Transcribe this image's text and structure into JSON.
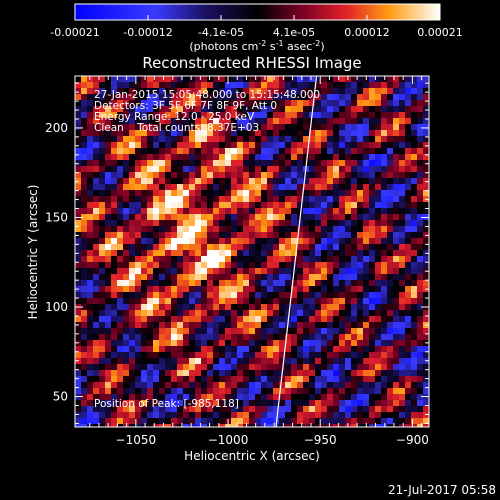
{
  "colorbar": {
    "ticks": [
      "-0.00021",
      "-0.00012",
      "-4.1e-05",
      "4.1e-05",
      "0.00012",
      "0.00021"
    ],
    "units_main": "(photons cm",
    "units_sup1": "-2",
    "units_mid1": " s",
    "units_sup2": "-1",
    "units_mid2": " asec",
    "units_sup3": "-2",
    "units_end": ")"
  },
  "chart_data": {
    "type": "heatmap",
    "title": "Reconstructed RHESSI Image",
    "xlabel": "Heliocentric X (arcsec)",
    "ylabel": "Heliocentric Y (arcsec)",
    "xlim": [
      -1083,
      -891
    ],
    "ylim": [
      33,
      229
    ],
    "xticks": [
      -1050,
      -1000,
      -950,
      -900
    ],
    "yticks": [
      50,
      100,
      150,
      200
    ],
    "xtick_labels": [
      "−1050",
      "−1000",
      "−950",
      "−900"
    ],
    "ytick_labels": [
      "50",
      "100",
      "150",
      "200"
    ],
    "limb_line": [
      [
        -974,
        33
      ],
      [
        -952,
        229
      ]
    ],
    "peak": [
      -985,
      118
    ],
    "annotations": [
      "27-Jan-2015 15:05:48.000 to 15:15:48.000",
      "Detectors: 3F 5F 6F 7F 8F 9F, Att 0",
      "Energy Range: 12.0 - 25.0 keV",
      "Clean    Total counts: 8.37E+03",
      "Position of Peak: [-985,118]"
    ]
  },
  "footer": {
    "date": "21-Jul-2017 05:58"
  },
  "colors": {
    "background": "#000000",
    "foreground": "#ffffff"
  }
}
